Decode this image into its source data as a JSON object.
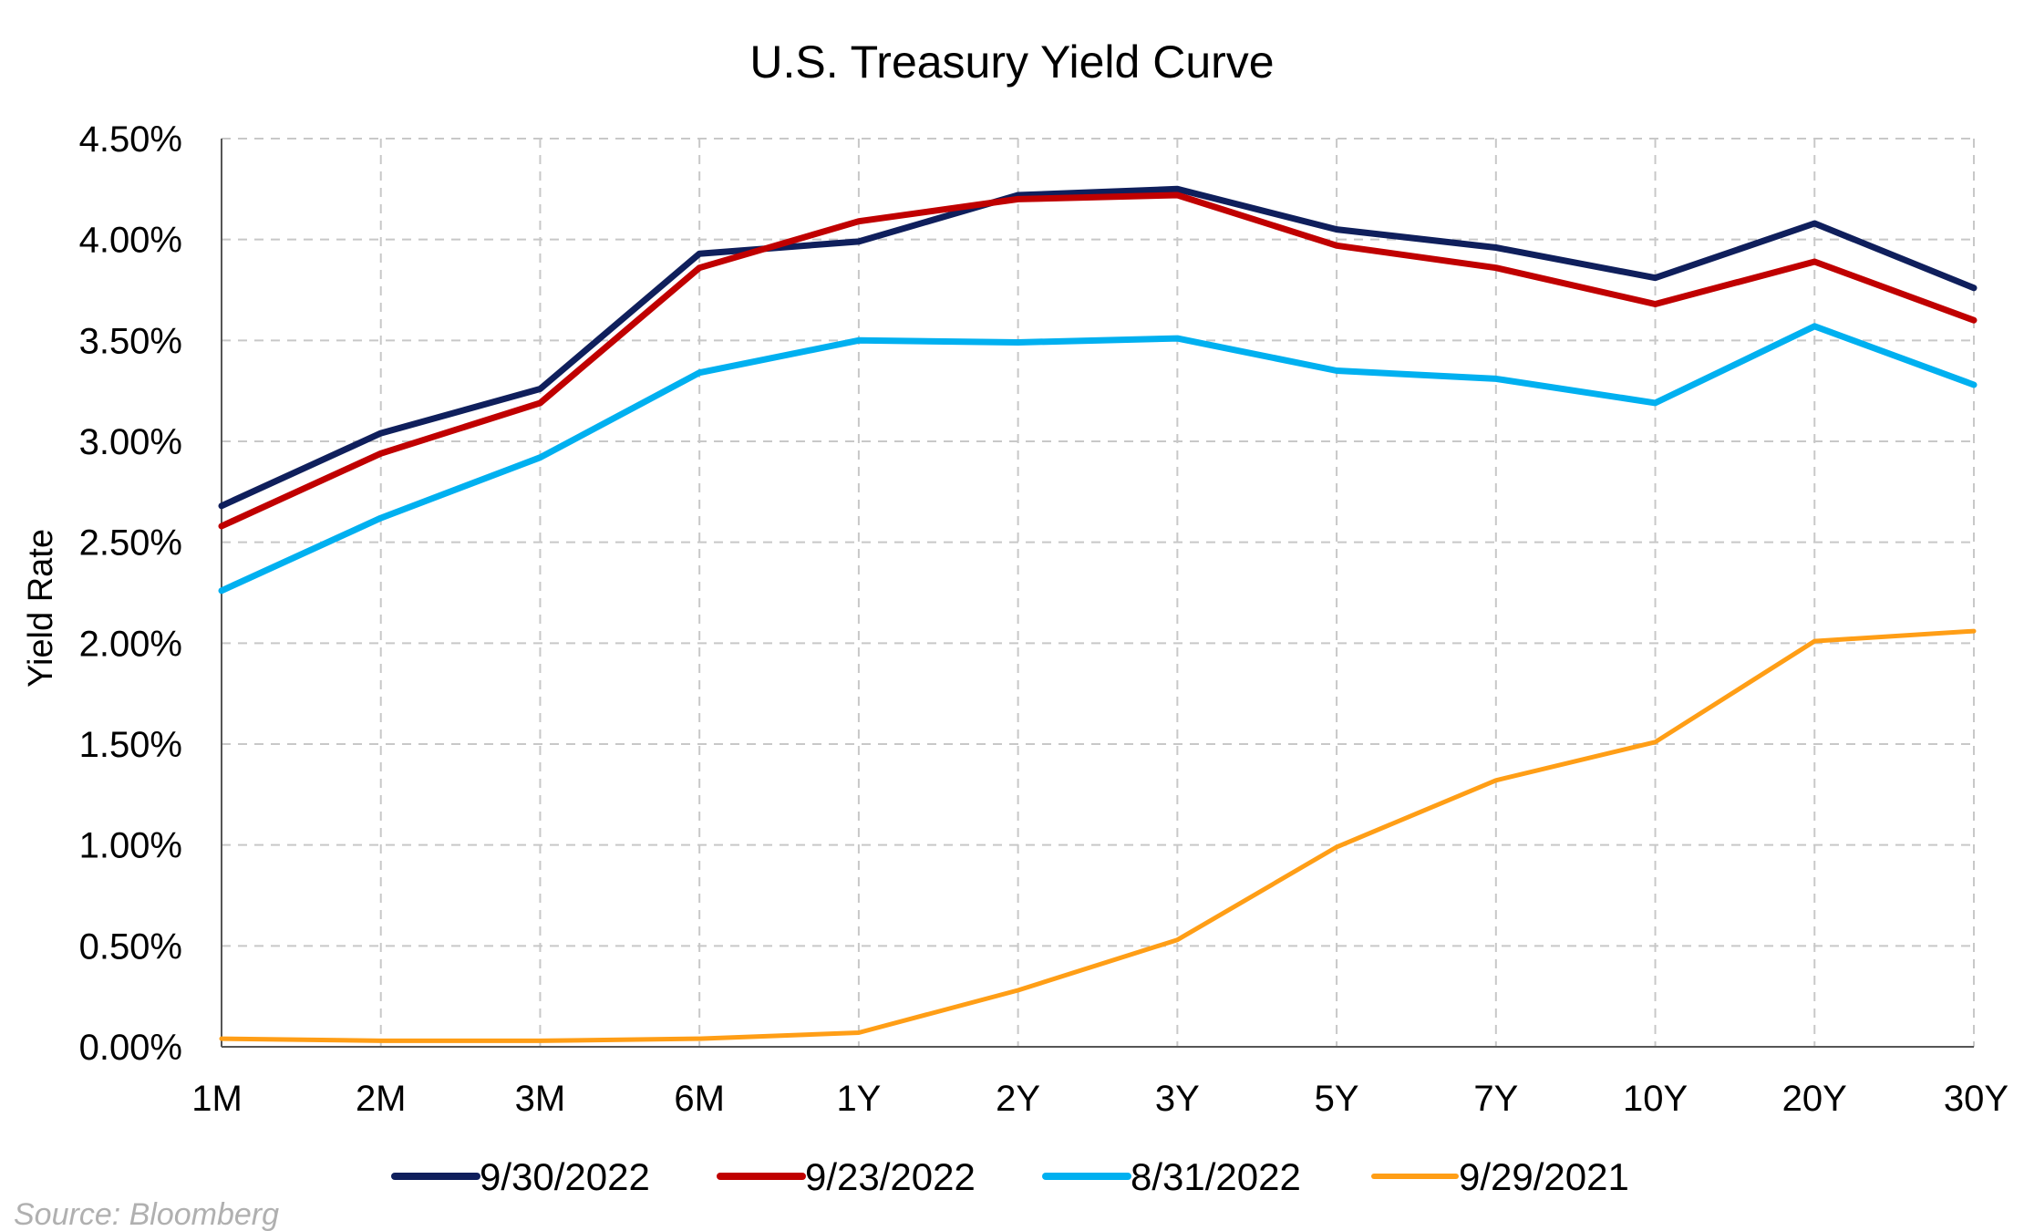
{
  "chart_data": {
    "type": "line",
    "title": "U.S. Treasury Yield Curve",
    "xlabel": "",
    "ylabel": "Yield Rate",
    "categories": [
      "1M",
      "2M",
      "3M",
      "6M",
      "1Y",
      "2Y",
      "3Y",
      "5Y",
      "7Y",
      "10Y",
      "20Y",
      "30Y"
    ],
    "y_ticks": [
      "0.00%",
      "0.50%",
      "1.00%",
      "1.50%",
      "2.00%",
      "2.50%",
      "3.00%",
      "3.50%",
      "4.00%",
      "4.50%"
    ],
    "ylim": [
      0,
      4.5
    ],
    "grid": true,
    "legend_position": "bottom",
    "series": [
      {
        "name": "9/30/2022",
        "color": "#0f1f5c",
        "values": [
          2.68,
          3.04,
          3.26,
          3.93,
          3.99,
          4.22,
          4.25,
          4.05,
          3.96,
          3.81,
          4.08,
          3.76
        ]
      },
      {
        "name": "9/23/2022",
        "color": "#c00000",
        "values": [
          2.58,
          2.94,
          3.19,
          3.86,
          4.09,
          4.2,
          4.22,
          3.97,
          3.86,
          3.68,
          3.89,
          3.6
        ]
      },
      {
        "name": "8/31/2022",
        "color": "#00b0f0",
        "values": [
          2.26,
          2.62,
          2.92,
          3.34,
          3.5,
          3.49,
          3.51,
          3.35,
          3.31,
          3.19,
          3.57,
          3.28
        ]
      },
      {
        "name": "9/29/2021",
        "color": "#ff9e16",
        "values": [
          0.04,
          0.03,
          0.03,
          0.04,
          0.07,
          0.28,
          0.53,
          0.99,
          1.32,
          1.51,
          2.01,
          2.06
        ]
      }
    ]
  },
  "source": "Source: Bloomberg"
}
